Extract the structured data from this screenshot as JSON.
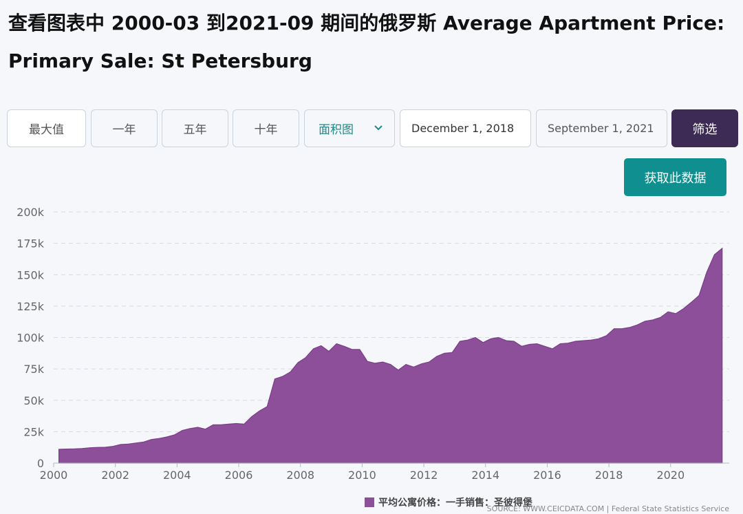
{
  "page": {
    "title": "查看图表中 2000-03 到2021-09 期间的俄罗斯 Average Apartment Price: Primary Sale: St Petersburg"
  },
  "controls": {
    "range_buttons": [
      "最大值",
      "一年",
      "五年",
      "十年"
    ],
    "chart_type_value": "面积图",
    "start_date": "December 1, 2018",
    "end_date": "September 1, 2021",
    "filter_label": "筛选",
    "get_data_label": "获取此数据"
  },
  "colors": {
    "accent": "#3d2a55",
    "teal": "#0f8f8f",
    "area_fill": "#8e4f9a",
    "area_stroke": "#7a3d88"
  },
  "legend": {
    "label": "平均公寓价格：一手销售：圣彼得堡"
  },
  "source": {
    "text": "SOURCE: WWW.CEICDATA.COM | Federal State Statistics Service"
  },
  "chart_data": {
    "type": "area",
    "title": "",
    "xlabel": "",
    "ylabel": "",
    "xlim": [
      2000.0,
      2021.9
    ],
    "ylim": [
      0,
      200000
    ],
    "x_ticks": [
      2000,
      2002,
      2004,
      2006,
      2008,
      2010,
      2012,
      2014,
      2016,
      2018,
      2020
    ],
    "y_ticks": [
      0,
      25000,
      50000,
      75000,
      100000,
      125000,
      150000,
      175000,
      200000
    ],
    "y_tick_labels": [
      "0",
      "25k",
      "50k",
      "75k",
      "100k",
      "125k",
      "150k",
      "175k",
      "200k"
    ],
    "grid": true,
    "legend_position": "bottom",
    "series": [
      {
        "name": "平均公寓价格：一手销售：圣彼得堡",
        "points": [
          [
            2000.17,
            11000
          ],
          [
            2000.42,
            11200
          ],
          [
            2000.67,
            11300
          ],
          [
            2000.92,
            11600
          ],
          [
            2001.17,
            12200
          ],
          [
            2001.42,
            12500
          ],
          [
            2001.67,
            12600
          ],
          [
            2001.92,
            13300
          ],
          [
            2002.17,
            14800
          ],
          [
            2002.42,
            15200
          ],
          [
            2002.67,
            16000
          ],
          [
            2002.92,
            16800
          ],
          [
            2003.17,
            18800
          ],
          [
            2003.42,
            19600
          ],
          [
            2003.67,
            20800
          ],
          [
            2003.92,
            22500
          ],
          [
            2004.17,
            26000
          ],
          [
            2004.42,
            27500
          ],
          [
            2004.67,
            28500
          ],
          [
            2004.92,
            27000
          ],
          [
            2005.17,
            30500
          ],
          [
            2005.42,
            30500
          ],
          [
            2005.67,
            31000
          ],
          [
            2005.92,
            31500
          ],
          [
            2006.17,
            31000
          ],
          [
            2006.42,
            37000
          ],
          [
            2006.67,
            41500
          ],
          [
            2006.92,
            45000
          ],
          [
            2007.17,
            67000
          ],
          [
            2007.42,
            69000
          ],
          [
            2007.67,
            72500
          ],
          [
            2007.92,
            80000
          ],
          [
            2008.17,
            84000
          ],
          [
            2008.42,
            91000
          ],
          [
            2008.67,
            93500
          ],
          [
            2008.92,
            89000
          ],
          [
            2009.17,
            95000
          ],
          [
            2009.42,
            93000
          ],
          [
            2009.67,
            90500
          ],
          [
            2009.92,
            90500
          ],
          [
            2010.17,
            81000
          ],
          [
            2010.42,
            79500
          ],
          [
            2010.67,
            80500
          ],
          [
            2010.92,
            78500
          ],
          [
            2011.17,
            74000
          ],
          [
            2011.42,
            78500
          ],
          [
            2011.67,
            76500
          ],
          [
            2011.92,
            79000
          ],
          [
            2012.17,
            80500
          ],
          [
            2012.42,
            85000
          ],
          [
            2012.67,
            87500
          ],
          [
            2012.92,
            88000
          ],
          [
            2013.17,
            97000
          ],
          [
            2013.42,
            98000
          ],
          [
            2013.67,
            100000
          ],
          [
            2013.92,
            96000
          ],
          [
            2014.17,
            99000
          ],
          [
            2014.42,
            100000
          ],
          [
            2014.67,
            97500
          ],
          [
            2014.92,
            97000
          ],
          [
            2015.17,
            93000
          ],
          [
            2015.42,
            94500
          ],
          [
            2015.67,
            95000
          ],
          [
            2015.92,
            93000
          ],
          [
            2016.17,
            91000
          ],
          [
            2016.42,
            95000
          ],
          [
            2016.67,
            95500
          ],
          [
            2016.92,
            97000
          ],
          [
            2017.17,
            97500
          ],
          [
            2017.42,
            98000
          ],
          [
            2017.67,
            99000
          ],
          [
            2017.92,
            101500
          ],
          [
            2018.17,
            107000
          ],
          [
            2018.42,
            107000
          ],
          [
            2018.67,
            108000
          ],
          [
            2018.92,
            110000
          ],
          [
            2019.17,
            113000
          ],
          [
            2019.42,
            114000
          ],
          [
            2019.67,
            116000
          ],
          [
            2019.92,
            120500
          ],
          [
            2020.17,
            119000
          ],
          [
            2020.42,
            123000
          ],
          [
            2020.67,
            128000
          ],
          [
            2020.92,
            133500
          ],
          [
            2021.17,
            152000
          ],
          [
            2021.42,
            166000
          ],
          [
            2021.67,
            171000
          ]
        ]
      }
    ]
  }
}
